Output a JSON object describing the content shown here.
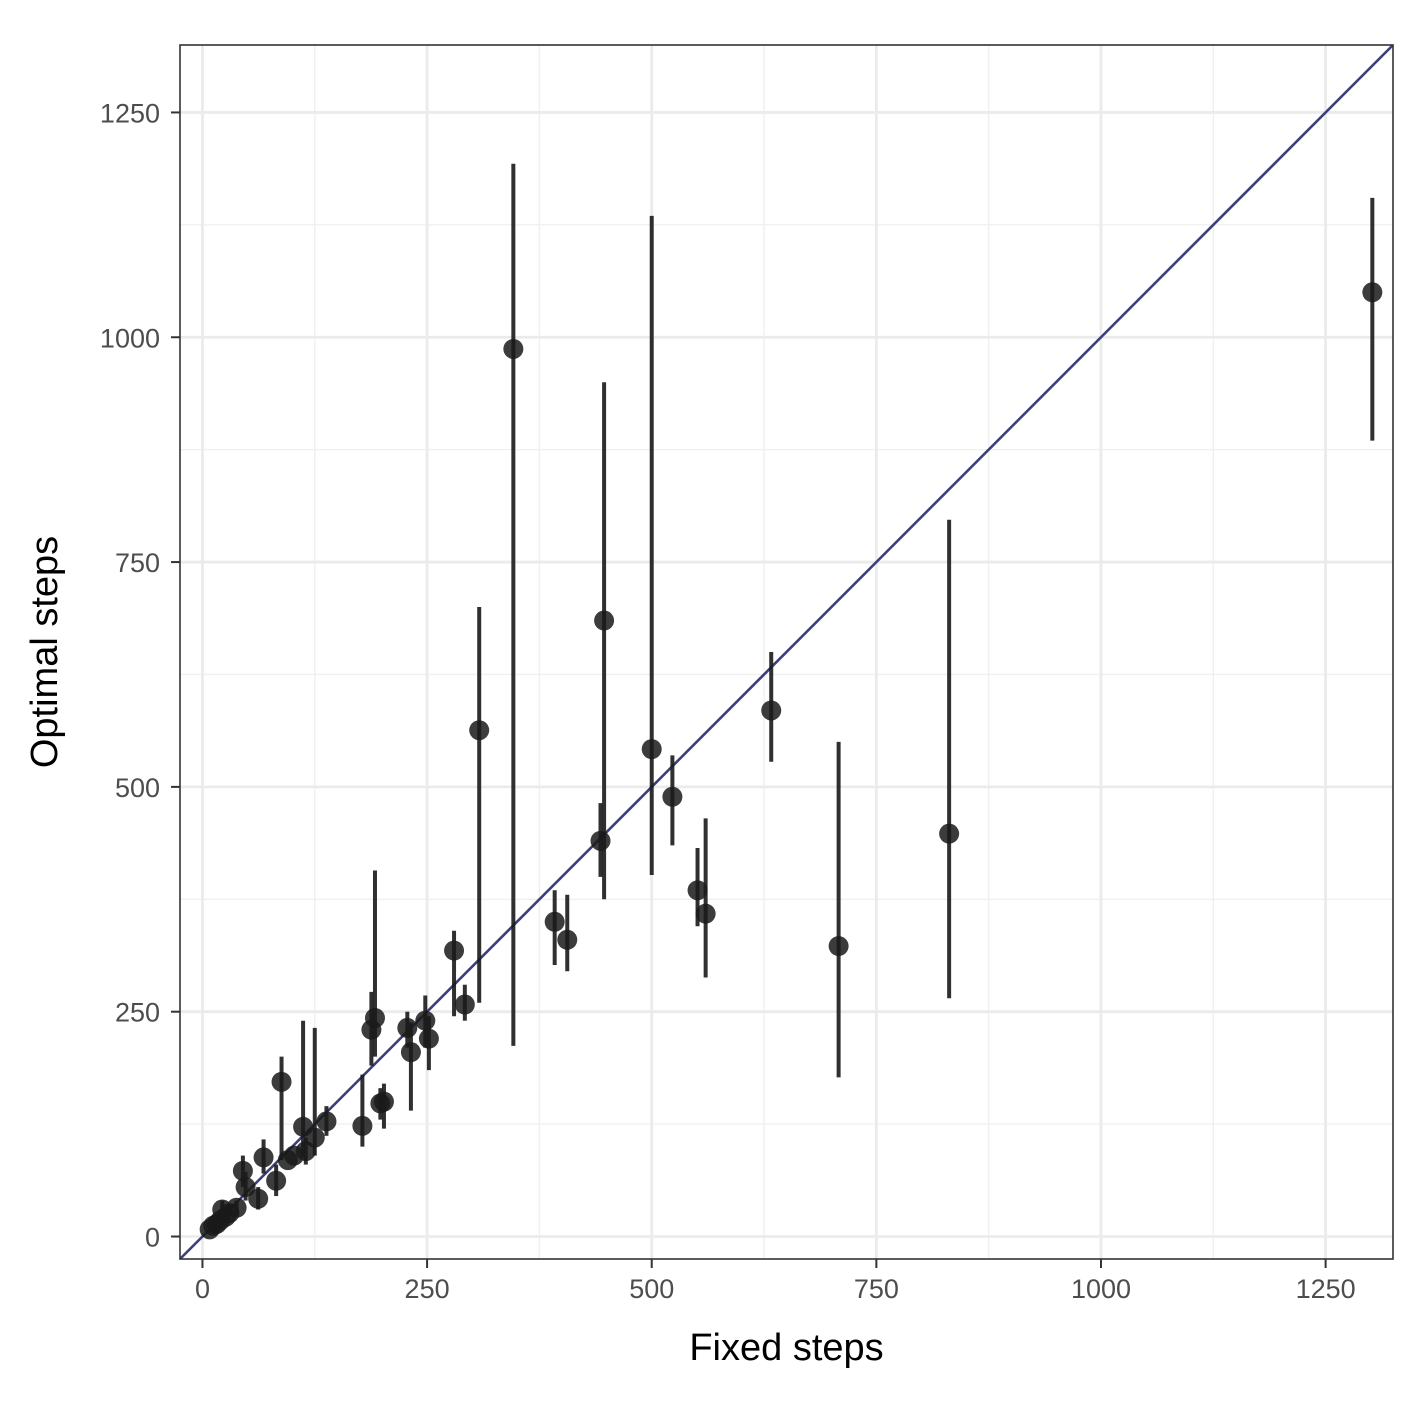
{
  "chart_data": {
    "type": "scatter",
    "title": "",
    "xlabel": "Fixed steps",
    "ylabel": "Optimal steps",
    "xlim": [
      -25,
      1325
    ],
    "ylim": [
      -25,
      1325
    ],
    "x_ticks": [
      0,
      250,
      500,
      750,
      1000,
      1250
    ],
    "y_ticks": [
      0,
      250,
      500,
      750,
      1000,
      1250
    ],
    "x_tick_labels": [
      "0",
      "250",
      "500",
      "750",
      "1000",
      "1250"
    ],
    "y_tick_labels": [
      "0",
      "250",
      "500",
      "750",
      "1000",
      "1250"
    ],
    "grid": true,
    "reference_line": {
      "type": "identity",
      "color": "#3b3f7a"
    },
    "point_color": "#1a1a1a",
    "points": [
      {
        "x": 8,
        "y": 8
      },
      {
        "x": 12,
        "y": 12,
        "lo": 5,
        "hi": 20
      },
      {
        "x": 16,
        "y": 14
      },
      {
        "x": 20,
        "y": 18,
        "lo": 10,
        "hi": 26
      },
      {
        "x": 22,
        "y": 30,
        "lo": 18,
        "hi": 40
      },
      {
        "x": 26,
        "y": 22
      },
      {
        "x": 30,
        "y": 26
      },
      {
        "x": 38,
        "y": 32,
        "lo": 24,
        "hi": 40
      },
      {
        "x": 45,
        "y": 73,
        "lo": 55,
        "hi": 90
      },
      {
        "x": 48,
        "y": 55,
        "lo": 40,
        "hi": 72
      },
      {
        "x": 62,
        "y": 42,
        "lo": 30,
        "hi": 55
      },
      {
        "x": 68,
        "y": 88,
        "lo": 70,
        "hi": 108
      },
      {
        "x": 82,
        "y": 62,
        "lo": 45,
        "hi": 80
      },
      {
        "x": 88,
        "y": 172,
        "lo": 85,
        "hi": 200
      },
      {
        "x": 95,
        "y": 85
      },
      {
        "x": 102,
        "y": 90
      },
      {
        "x": 112,
        "y": 122,
        "lo": 90,
        "hi": 240
      },
      {
        "x": 115,
        "y": 95,
        "lo": 80,
        "hi": 110
      },
      {
        "x": 125,
        "y": 110,
        "lo": 90,
        "hi": 232
      },
      {
        "x": 138,
        "y": 128,
        "lo": 112,
        "hi": 145
      },
      {
        "x": 178,
        "y": 123,
        "lo": 100,
        "hi": 180
      },
      {
        "x": 188,
        "y": 230,
        "lo": 190,
        "hi": 272
      },
      {
        "x": 192,
        "y": 243,
        "lo": 200,
        "hi": 407
      },
      {
        "x": 198,
        "y": 148,
        "lo": 130,
        "hi": 165
      },
      {
        "x": 202,
        "y": 150,
        "lo": 120,
        "hi": 170
      },
      {
        "x": 228,
        "y": 232,
        "lo": 210,
        "hi": 250
      },
      {
        "x": 232,
        "y": 205,
        "lo": 140,
        "hi": 238
      },
      {
        "x": 248,
        "y": 240,
        "lo": 210,
        "hi": 268
      },
      {
        "x": 252,
        "y": 220,
        "lo": 185,
        "hi": 245
      },
      {
        "x": 280,
        "y": 318,
        "lo": 245,
        "hi": 340
      },
      {
        "x": 292,
        "y": 258,
        "lo": 240,
        "hi": 280
      },
      {
        "x": 308,
        "y": 563,
        "lo": 260,
        "hi": 700
      },
      {
        "x": 346,
        "y": 987,
        "lo": 212,
        "hi": 1193
      },
      {
        "x": 392,
        "y": 350,
        "lo": 302,
        "hi": 385
      },
      {
        "x": 406,
        "y": 330,
        "lo": 295,
        "hi": 380
      },
      {
        "x": 443,
        "y": 440,
        "lo": 400,
        "hi": 482
      },
      {
        "x": 447,
        "y": 685,
        "lo": 375,
        "hi": 950
      },
      {
        "x": 500,
        "y": 542,
        "lo": 402,
        "hi": 1135
      },
      {
        "x": 523,
        "y": 489,
        "lo": 435,
        "hi": 535
      },
      {
        "x": 551,
        "y": 385,
        "lo": 345,
        "hi": 432
      },
      {
        "x": 560,
        "y": 359,
        "lo": 288,
        "hi": 465
      },
      {
        "x": 633,
        "y": 585,
        "lo": 528,
        "hi": 650
      },
      {
        "x": 708,
        "y": 323,
        "lo": 177,
        "hi": 550
      },
      {
        "x": 831,
        "y": 448,
        "lo": 265,
        "hi": 797
      },
      {
        "x": 1302,
        "y": 1050,
        "lo": 885,
        "hi": 1155
      }
    ]
  }
}
